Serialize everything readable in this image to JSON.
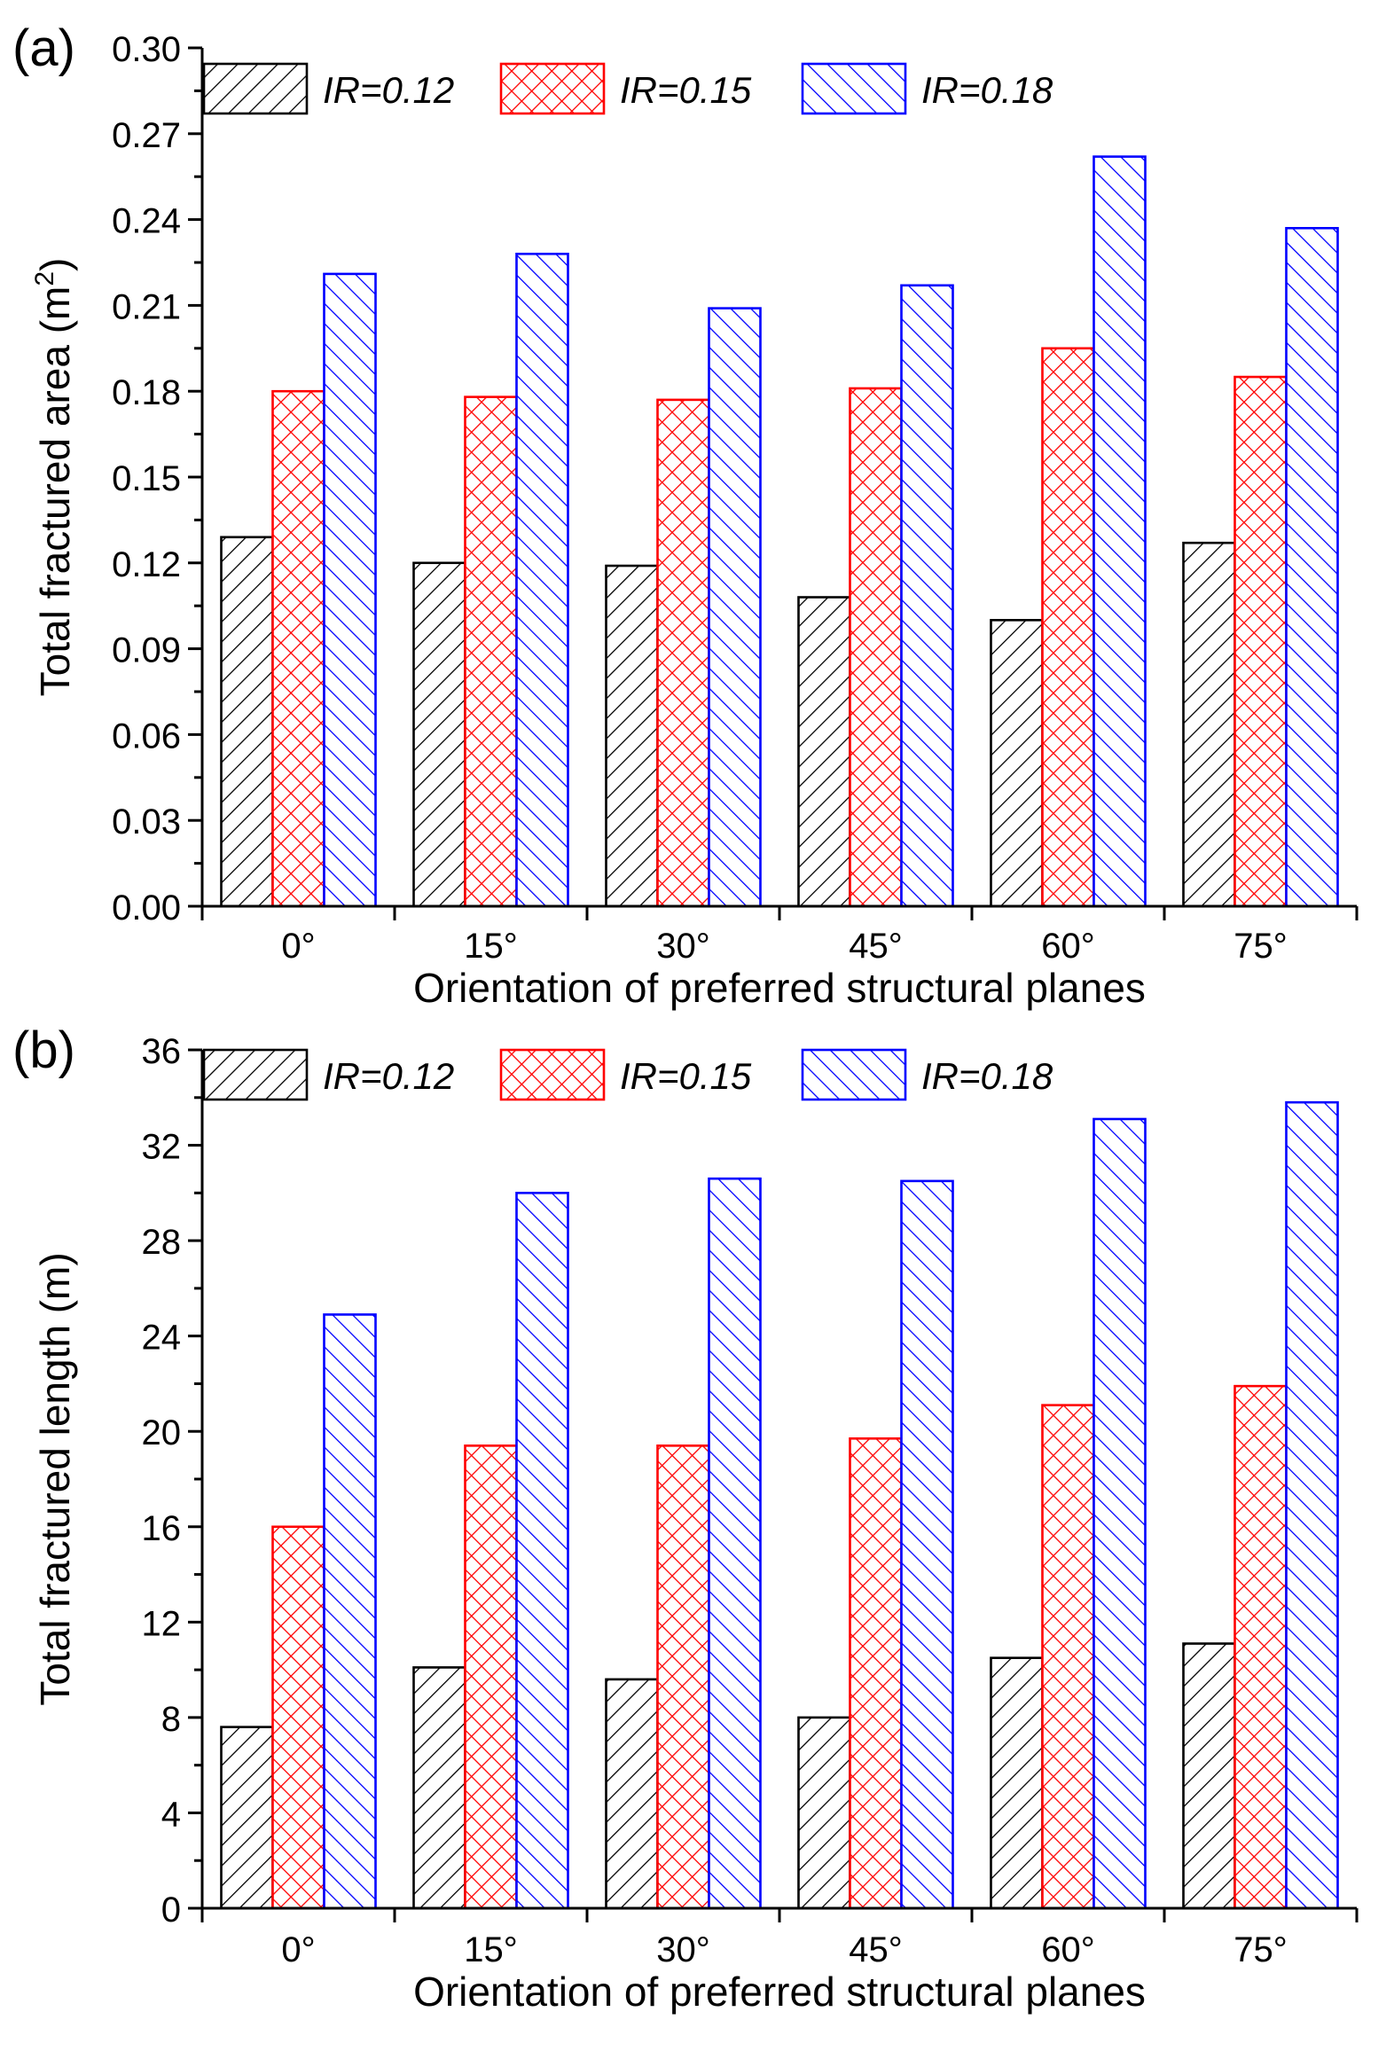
{
  "chart_data": [
    {
      "panel_label": "(a)",
      "type": "bar",
      "categories": [
        "0°",
        "15°",
        "30°",
        "45°",
        "60°",
        "75°"
      ],
      "series": [
        {
          "name": "IR=0.12",
          "color": "#000000",
          "pattern": "hatch-forward",
          "values": [
            0.129,
            0.12,
            0.119,
            0.108,
            0.1,
            0.127
          ]
        },
        {
          "name": "IR=0.15",
          "color": "#ff0000",
          "pattern": "crosshatch",
          "values": [
            0.18,
            0.178,
            0.177,
            0.181,
            0.195,
            0.185
          ]
        },
        {
          "name": "IR=0.18",
          "color": "#0000ff",
          "pattern": "hatch-back",
          "values": [
            0.221,
            0.228,
            0.209,
            0.217,
            0.262,
            0.237
          ]
        }
      ],
      "xlabel": "Orientation of preferred structural planes",
      "ylabel": "Total fractured area (m",
      "ylabel_sup": "2",
      "ylabel_tail": ")",
      "ylim": [
        0,
        0.3
      ],
      "yticks": [
        "0.00",
        "0.03",
        "0.06",
        "0.09",
        "0.12",
        "0.15",
        "0.18",
        "0.21",
        "0.24",
        "0.27",
        "0.30"
      ],
      "legend_position": "top"
    },
    {
      "panel_label": "(b)",
      "type": "bar",
      "categories": [
        "0°",
        "15°",
        "30°",
        "45°",
        "60°",
        "75°"
      ],
      "series": [
        {
          "name": "IR=0.12",
          "color": "#000000",
          "pattern": "hatch-forward",
          "values": [
            7.6,
            10.1,
            9.6,
            8.0,
            10.5,
            11.1
          ]
        },
        {
          "name": "IR=0.15",
          "color": "#ff0000",
          "pattern": "crosshatch",
          "values": [
            16.0,
            19.4,
            19.4,
            19.7,
            21.1,
            21.9
          ]
        },
        {
          "name": "IR=0.18",
          "color": "#0000ff",
          "pattern": "hatch-back",
          "values": [
            24.9,
            30.0,
            30.6,
            30.5,
            33.1,
            33.8
          ]
        }
      ],
      "xlabel": "Orientation of preferred structural planes",
      "ylabel": "Total fractured length (m)",
      "ylim": [
        0,
        36
      ],
      "yticks": [
        "0",
        "4",
        "8",
        "12",
        "16",
        "20",
        "24",
        "28",
        "32",
        "36"
      ],
      "legend_position": "top"
    }
  ]
}
